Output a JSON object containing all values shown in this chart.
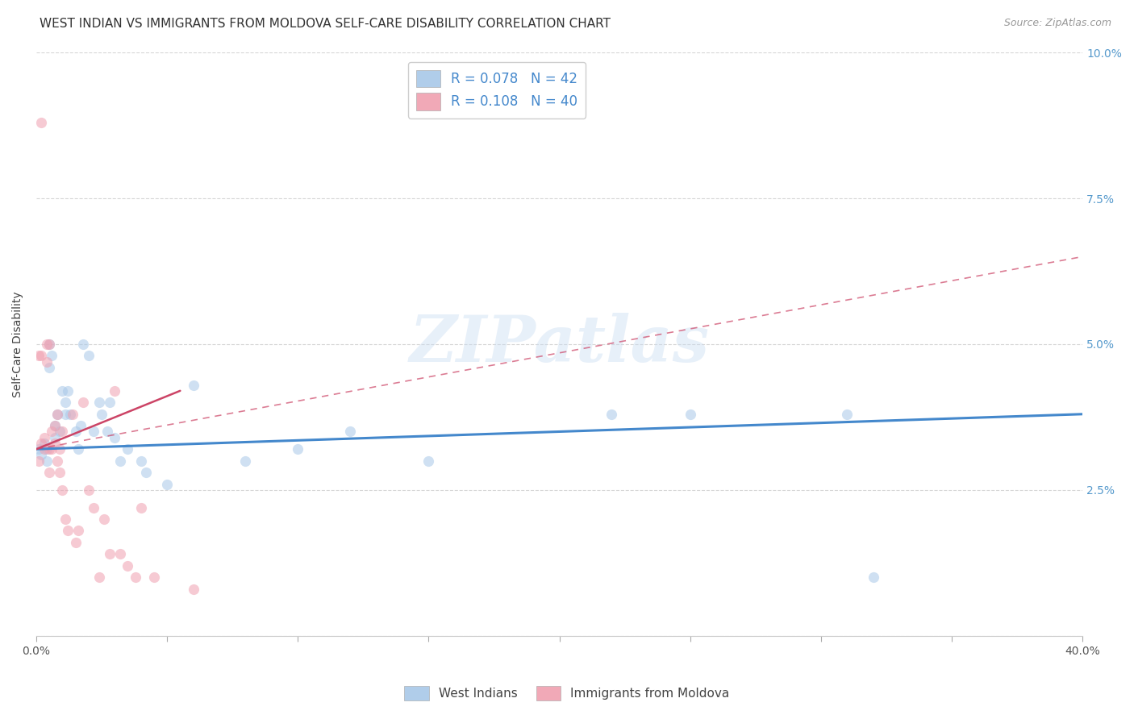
{
  "title": "WEST INDIAN VS IMMIGRANTS FROM MOLDOVA SELF-CARE DISABILITY CORRELATION CHART",
  "source": "Source: ZipAtlas.com",
  "ylabel": "Self-Care Disability",
  "xlim": [
    0.0,
    0.4
  ],
  "ylim": [
    0.0,
    0.1
  ],
  "watermark_text": "ZIPatlas",
  "R_west_indian": 0.078,
  "N_west_indian": 42,
  "R_moldova": 0.108,
  "N_moldova": 40,
  "scatter_alpha": 0.55,
  "scatter_size": 90,
  "blue_scatter_color": "#a8c8e8",
  "pink_scatter_color": "#f0a0b0",
  "blue_line_color": "#4488cc",
  "pink_line_color": "#cc4466",
  "grid_color": "#cccccc",
  "bg_color": "#ffffff",
  "title_fontsize": 11,
  "axis_label_fontsize": 10,
  "tick_fontsize": 10,
  "legend_fontsize": 12,
  "source_fontsize": 9,
  "blue_line_x": [
    0.0,
    0.4
  ],
  "blue_line_y": [
    0.032,
    0.038
  ],
  "pink_solid_line_x": [
    0.0,
    0.055
  ],
  "pink_solid_line_y": [
    0.032,
    0.042
  ],
  "pink_dashed_line_x": [
    0.0,
    0.4
  ],
  "pink_dashed_line_y": [
    0.032,
    0.065
  ],
  "west_indian_x": [
    0.001,
    0.002,
    0.003,
    0.004,
    0.004,
    0.005,
    0.005,
    0.006,
    0.007,
    0.007,
    0.008,
    0.009,
    0.01,
    0.011,
    0.011,
    0.012,
    0.013,
    0.015,
    0.016,
    0.017,
    0.018,
    0.02,
    0.022,
    0.024,
    0.025,
    0.027,
    0.028,
    0.03,
    0.032,
    0.035,
    0.04,
    0.042,
    0.05,
    0.06,
    0.08,
    0.1,
    0.12,
    0.15,
    0.22,
    0.25,
    0.31,
    0.32
  ],
  "west_indian_y": [
    0.032,
    0.031,
    0.033,
    0.032,
    0.03,
    0.05,
    0.046,
    0.048,
    0.036,
    0.034,
    0.038,
    0.035,
    0.042,
    0.04,
    0.038,
    0.042,
    0.038,
    0.035,
    0.032,
    0.036,
    0.05,
    0.048,
    0.035,
    0.04,
    0.038,
    0.035,
    0.04,
    0.034,
    0.03,
    0.032,
    0.03,
    0.028,
    0.026,
    0.043,
    0.03,
    0.032,
    0.035,
    0.03,
    0.038,
    0.038,
    0.038,
    0.01
  ],
  "moldova_x": [
    0.001,
    0.001,
    0.002,
    0.002,
    0.002,
    0.003,
    0.003,
    0.004,
    0.004,
    0.005,
    0.005,
    0.005,
    0.006,
    0.006,
    0.007,
    0.007,
    0.008,
    0.008,
    0.009,
    0.009,
    0.01,
    0.01,
    0.011,
    0.012,
    0.014,
    0.015,
    0.016,
    0.018,
    0.02,
    0.022,
    0.024,
    0.026,
    0.028,
    0.03,
    0.032,
    0.035,
    0.038,
    0.04,
    0.045,
    0.06
  ],
  "moldova_y": [
    0.03,
    0.048,
    0.088,
    0.033,
    0.048,
    0.034,
    0.032,
    0.05,
    0.047,
    0.05,
    0.032,
    0.028,
    0.035,
    0.032,
    0.036,
    0.033,
    0.038,
    0.03,
    0.032,
    0.028,
    0.035,
    0.025,
    0.02,
    0.018,
    0.038,
    0.016,
    0.018,
    0.04,
    0.025,
    0.022,
    0.01,
    0.02,
    0.014,
    0.042,
    0.014,
    0.012,
    0.01,
    0.022,
    0.01,
    0.008
  ]
}
